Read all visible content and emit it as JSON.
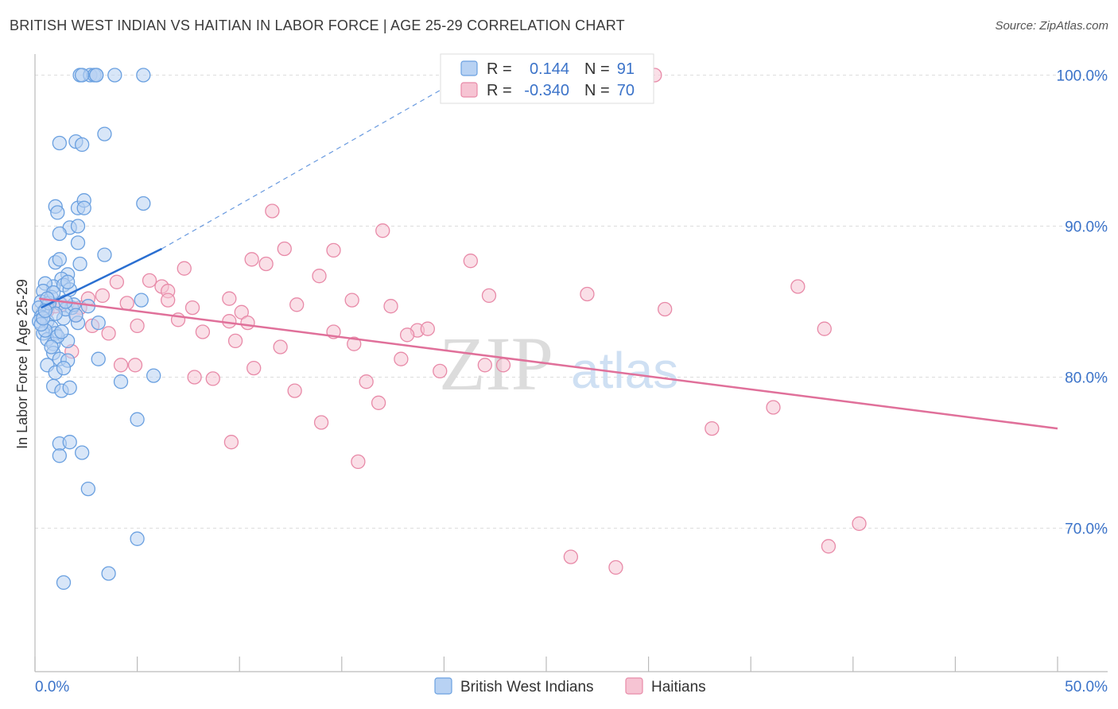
{
  "title": "BRITISH WEST INDIAN VS HAITIAN IN LABOR FORCE | AGE 25-29 CORRELATION CHART",
  "source": "Source: ZipAtlas.com",
  "colors": {
    "blue": "#6aa0e0",
    "blue_fill": "#b8d2f3",
    "blue_line": "#2a6fd1",
    "pink": "#e88aa8",
    "pink_fill": "#f6c4d3",
    "pink_line": "#e0709a",
    "grid": "#dddddd",
    "tick_text": "#3b73c9"
  },
  "watermark": {
    "zip": "ZIP",
    "atlas": "atlas"
  },
  "stats": [
    {
      "r_label": "R =",
      "r": "0.144",
      "n_label": "N =",
      "n": "91",
      "series": "blue"
    },
    {
      "r_label": "R =",
      "r": "-0.340",
      "n_label": "N =",
      "n": "70",
      "series": "pink"
    }
  ],
  "chart_data": {
    "type": "scatter",
    "title": "BRITISH WEST INDIAN VS HAITIAN IN LABOR FORCE | AGE 25-29 CORRELATION CHART",
    "xlabel": "",
    "ylabel": "In Labor Force | Age 25-29",
    "xlim": [
      0,
      50
    ],
    "ylim": [
      60.5,
      101.5
    ],
    "x_tick_labels": [
      "0.0%",
      "50.0%"
    ],
    "y_ticks": [
      70,
      80,
      90,
      100
    ],
    "y_tick_labels": [
      "70.0%",
      "80.0%",
      "90.0%",
      "100.0%"
    ],
    "grid": true,
    "legend_position": "bottom-center",
    "series": [
      {
        "name": "British West Indians",
        "color": "#6aa0e0",
        "r": 0.144,
        "n": 91,
        "trend": {
          "x0": 0.3,
          "y0": 84.6,
          "x1": 6.2,
          "y1": 88.5,
          "dash_to_x": 21.5,
          "dash_to_y": 100.3
        },
        "points": [
          [
            2.2,
            100
          ],
          [
            2.7,
            100
          ],
          [
            2.9,
            100
          ],
          [
            3.0,
            100
          ],
          [
            2.3,
            100
          ],
          [
            3.9,
            100
          ],
          [
            5.3,
            100
          ],
          [
            3.0,
            100
          ],
          [
            3.4,
            96.1
          ],
          [
            1.2,
            95.5
          ],
          [
            2.0,
            95.6
          ],
          [
            2.3,
            95.4
          ],
          [
            1.0,
            91.3
          ],
          [
            2.1,
            91.2
          ],
          [
            2.4,
            91.7
          ],
          [
            5.3,
            91.5
          ],
          [
            1.1,
            90.9
          ],
          [
            2.4,
            91.2
          ],
          [
            1.7,
            89.9
          ],
          [
            2.1,
            90.0
          ],
          [
            1.2,
            89.5
          ],
          [
            2.1,
            88.9
          ],
          [
            3.4,
            88.1
          ],
          [
            1.0,
            87.6
          ],
          [
            2.2,
            87.5
          ],
          [
            1.6,
            86.8
          ],
          [
            1.3,
            86.5
          ],
          [
            0.9,
            86.0
          ],
          [
            1.4,
            86.1
          ],
          [
            0.5,
            86.2
          ],
          [
            1.7,
            85.8
          ],
          [
            0.4,
            85.7
          ],
          [
            5.2,
            85.1
          ],
          [
            0.3,
            85.0
          ],
          [
            0.6,
            84.7
          ],
          [
            1.2,
            84.9
          ],
          [
            1.8,
            84.6
          ],
          [
            0.4,
            84.3
          ],
          [
            0.2,
            84.6
          ],
          [
            0.3,
            84.0
          ],
          [
            0.6,
            83.7
          ],
          [
            1.4,
            83.9
          ],
          [
            0.2,
            83.7
          ],
          [
            2.1,
            83.6
          ],
          [
            3.1,
            83.6
          ],
          [
            0.8,
            83.3
          ],
          [
            0.4,
            82.9
          ],
          [
            1.0,
            82.9
          ],
          [
            0.6,
            82.5
          ],
          [
            1.6,
            82.4
          ],
          [
            0.9,
            82.2
          ],
          [
            0.9,
            81.6
          ],
          [
            1.2,
            81.2
          ],
          [
            1.6,
            81.1
          ],
          [
            3.1,
            81.2
          ],
          [
            0.6,
            80.8
          ],
          [
            1.0,
            80.3
          ],
          [
            1.4,
            80.6
          ],
          [
            5.8,
            80.1
          ],
          [
            4.2,
            79.7
          ],
          [
            0.9,
            79.4
          ],
          [
            1.3,
            79.1
          ],
          [
            1.7,
            79.3
          ],
          [
            5.0,
            77.2
          ],
          [
            1.2,
            75.6
          ],
          [
            1.7,
            75.7
          ],
          [
            2.3,
            75.0
          ],
          [
            1.2,
            74.8
          ],
          [
            2.6,
            72.6
          ],
          [
            5.0,
            69.3
          ],
          [
            3.6,
            67.0
          ],
          [
            1.4,
            66.4
          ],
          [
            0.8,
            85.3
          ],
          [
            1.5,
            84.5
          ],
          [
            0.5,
            83.1
          ],
          [
            1.1,
            82.7
          ],
          [
            0.7,
            84.9
          ],
          [
            1.9,
            84.8
          ],
          [
            0.3,
            83.5
          ],
          [
            0.9,
            85.6
          ],
          [
            1.5,
            85.0
          ],
          [
            2.6,
            84.7
          ],
          [
            0.4,
            83.9
          ],
          [
            1.0,
            84.2
          ],
          [
            1.3,
            83.0
          ],
          [
            0.6,
            85.2
          ],
          [
            2.0,
            84.1
          ],
          [
            0.8,
            82.0
          ],
          [
            1.6,
            86.3
          ],
          [
            1.2,
            87.8
          ],
          [
            0.5,
            84.4
          ]
        ]
      },
      {
        "name": "Haitians",
        "color": "#e88aa8",
        "r": -0.34,
        "n": 70,
        "trend": {
          "x0": 0.2,
          "y0": 85.2,
          "x1": 50.0,
          "y1": 76.6
        },
        "points": [
          [
            30.3,
            100
          ],
          [
            11.6,
            91.0
          ],
          [
            17.0,
            89.7
          ],
          [
            12.2,
            88.5
          ],
          [
            14.6,
            88.4
          ],
          [
            10.6,
            87.8
          ],
          [
            11.3,
            87.5
          ],
          [
            21.3,
            87.7
          ],
          [
            7.3,
            87.2
          ],
          [
            13.9,
            86.7
          ],
          [
            5.6,
            86.4
          ],
          [
            4.0,
            86.3
          ],
          [
            6.2,
            86.0
          ],
          [
            6.5,
            85.7
          ],
          [
            3.3,
            85.4
          ],
          [
            2.6,
            85.2
          ],
          [
            9.5,
            85.2
          ],
          [
            15.5,
            85.1
          ],
          [
            22.2,
            85.4
          ],
          [
            27.0,
            85.5
          ],
          [
            37.3,
            86.0
          ],
          [
            4.5,
            84.9
          ],
          [
            6.5,
            85.1
          ],
          [
            7.7,
            84.6
          ],
          [
            12.8,
            84.8
          ],
          [
            17.4,
            84.7
          ],
          [
            10.1,
            84.3
          ],
          [
            30.8,
            84.5
          ],
          [
            1.3,
            84.8
          ],
          [
            2.2,
            84.6
          ],
          [
            0.6,
            84.4
          ],
          [
            7.0,
            83.8
          ],
          [
            9.5,
            83.7
          ],
          [
            10.4,
            83.6
          ],
          [
            18.7,
            83.1
          ],
          [
            19.2,
            83.2
          ],
          [
            2.8,
            83.4
          ],
          [
            5.0,
            83.4
          ],
          [
            8.2,
            83.0
          ],
          [
            14.6,
            83.0
          ],
          [
            3.6,
            82.9
          ],
          [
            18.2,
            82.8
          ],
          [
            1.8,
            81.7
          ],
          [
            9.8,
            82.4
          ],
          [
            15.6,
            82.2
          ],
          [
            12.0,
            82.0
          ],
          [
            17.9,
            81.2
          ],
          [
            4.2,
            80.8
          ],
          [
            4.9,
            80.8
          ],
          [
            10.7,
            80.6
          ],
          [
            22.0,
            80.8
          ],
          [
            22.9,
            80.8
          ],
          [
            19.8,
            80.4
          ],
          [
            7.8,
            80.0
          ],
          [
            8.7,
            79.9
          ],
          [
            16.2,
            79.7
          ],
          [
            12.7,
            79.1
          ],
          [
            38.6,
            83.2
          ],
          [
            36.1,
            78.0
          ],
          [
            16.8,
            78.3
          ],
          [
            14.0,
            77.0
          ],
          [
            33.1,
            76.6
          ],
          [
            9.6,
            75.7
          ],
          [
            15.8,
            74.4
          ],
          [
            40.3,
            70.3
          ],
          [
            38.8,
            68.8
          ],
          [
            26.2,
            68.1
          ],
          [
            28.4,
            67.4
          ],
          [
            1.0,
            84.7
          ],
          [
            2.0,
            84.1
          ]
        ]
      }
    ]
  }
}
